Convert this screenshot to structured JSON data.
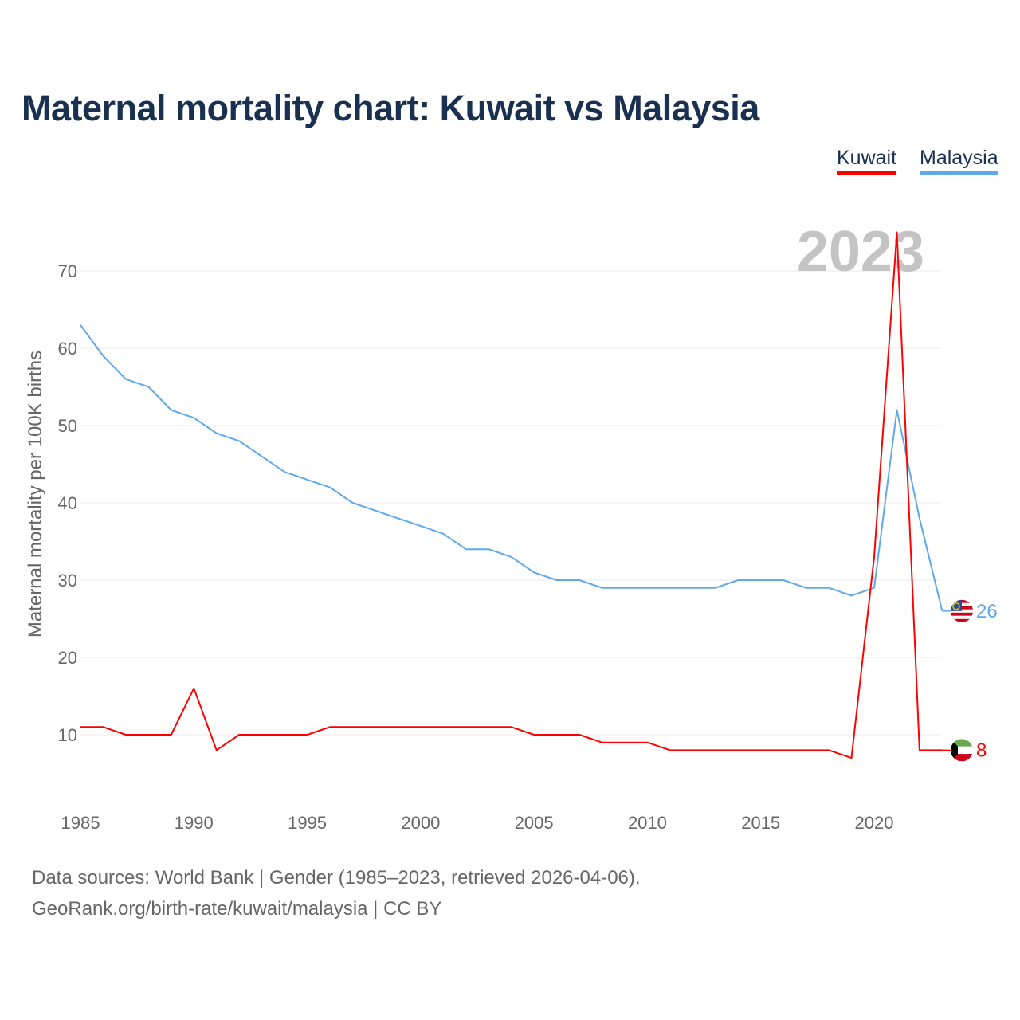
{
  "title": "Maternal mortality chart: Kuwait vs Malaysia",
  "footer": {
    "line1": "Data sources: World Bank | Gender (1985–2023, retrieved 2026-04-06).",
    "line2": "GeoRank.org/birth-rate/kuwait/malaysia | CC BY"
  },
  "chart_data": {
    "type": "line",
    "title": "Maternal mortality chart: Kuwait vs Malaysia",
    "ylabel": "Maternal mortality per 100K births",
    "xlabel": "",
    "year_label": "2023",
    "xlim": [
      1985,
      2023
    ],
    "ylim": [
      0,
      78
    ],
    "x_ticks": [
      "1985",
      "1990",
      "1995",
      "2000",
      "2005",
      "2010",
      "2015",
      "2020"
    ],
    "y_ticks": [
      "10",
      "20",
      "30",
      "40",
      "50",
      "60",
      "70"
    ],
    "grid": true,
    "legend": "top-right",
    "x": [
      1985,
      1986,
      1987,
      1988,
      1989,
      1990,
      1991,
      1992,
      1993,
      1994,
      1995,
      1996,
      1997,
      1998,
      1999,
      2000,
      2001,
      2002,
      2003,
      2004,
      2005,
      2006,
      2007,
      2008,
      2009,
      2010,
      2011,
      2012,
      2013,
      2014,
      2015,
      2016,
      2017,
      2018,
      2019,
      2020,
      2021,
      2022,
      2023
    ],
    "series": [
      {
        "name": "Kuwait",
        "color": "#ff0000",
        "end_label": "8",
        "values": [
          11,
          11,
          10,
          10,
          10,
          16,
          8,
          10,
          10,
          10,
          10,
          11,
          11,
          11,
          11,
          11,
          11,
          11,
          11,
          11,
          10,
          10,
          10,
          9,
          9,
          9,
          8,
          8,
          8,
          8,
          8,
          8,
          8,
          8,
          7,
          33,
          75,
          8,
          8
        ]
      },
      {
        "name": "Malaysia",
        "color": "#5fa8ea",
        "end_label": "26",
        "values": [
          63,
          59,
          56,
          55,
          52,
          51,
          49,
          48,
          46,
          44,
          43,
          42,
          40,
          39,
          38,
          37,
          36,
          34,
          34,
          33,
          31,
          30,
          30,
          29,
          29,
          29,
          29,
          29,
          29,
          30,
          30,
          30,
          29,
          29,
          28,
          29,
          52,
          38,
          26
        ]
      }
    ]
  }
}
